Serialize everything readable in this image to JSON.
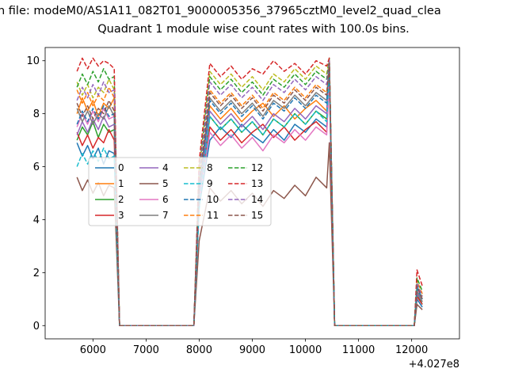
{
  "figure": {
    "title_line1": "n file: modeM0/AS1A11_082T01_9000005356_37965cztM0_level2_quad_clea",
    "title_line2": "Quadrant 1 module wise count rates with 100.0s bins.",
    "background": "#ffffff"
  },
  "chart_data": {
    "type": "line",
    "title": "Quadrant 1 module wise count rates with 100.0s bins.",
    "xlabel": "",
    "ylabel": "",
    "x_offset_label": "+4.027e8",
    "xlim": [
      5100,
      12900
    ],
    "ylim": [
      -0.5,
      10.5
    ],
    "x_ticks": [
      6000,
      7000,
      8000,
      9000,
      10000,
      11000,
      12000
    ],
    "y_ticks": [
      0,
      2,
      4,
      6,
      8,
      10
    ],
    "grid": false,
    "legend": {
      "columns": 4,
      "position": "center-left",
      "frame_color": "#cccccc"
    },
    "x": [
      5700,
      5800,
      5900,
      6000,
      6100,
      6200,
      6300,
      6400,
      6500,
      7900,
      8000,
      8200,
      8400,
      8600,
      8800,
      9000,
      9200,
      9400,
      9600,
      9800,
      10000,
      10200,
      10400,
      10450,
      10550,
      12050,
      12100,
      12200
    ],
    "series": [
      {
        "name": "0",
        "color": "#1f77b4",
        "dashed": false,
        "values": [
          6.9,
          6.4,
          6.8,
          6.3,
          6.7,
          6.1,
          6.6,
          6.5,
          0,
          0,
          4.5,
          7.0,
          7.5,
          7.1,
          7.6,
          7.2,
          6.9,
          7.4,
          7.0,
          7.6,
          7.3,
          7.8,
          7.5,
          9.3,
          0,
          0,
          1.0,
          0.7
        ]
      },
      {
        "name": "1",
        "color": "#ff7f0e",
        "dashed": false,
        "values": [
          8.0,
          8.6,
          8.1,
          8.5,
          7.9,
          8.4,
          8.2,
          8.6,
          0,
          0,
          5.0,
          8.3,
          7.8,
          8.2,
          7.7,
          8.1,
          8.4,
          7.9,
          8.3,
          7.8,
          8.2,
          8.5,
          8.1,
          10.0,
          0,
          0,
          1.3,
          0.9
        ]
      },
      {
        "name": "2",
        "color": "#2ca02c",
        "dashed": false,
        "values": [
          7.0,
          7.5,
          7.2,
          7.7,
          7.1,
          7.6,
          7.3,
          7.4,
          0,
          0,
          4.8,
          7.9,
          7.4,
          7.8,
          7.3,
          7.7,
          7.2,
          7.8,
          7.5,
          8.0,
          7.6,
          8.1,
          7.8,
          9.6,
          0,
          0,
          1.2,
          0.8
        ]
      },
      {
        "name": "3",
        "color": "#d62728",
        "dashed": false,
        "values": [
          7.3,
          6.8,
          7.2,
          6.7,
          7.1,
          6.9,
          7.4,
          7.0,
          0,
          0,
          4.6,
          7.5,
          7.0,
          7.4,
          6.9,
          7.3,
          7.6,
          7.1,
          7.5,
          7.0,
          7.4,
          7.7,
          7.3,
          9.4,
          0,
          0,
          1.1,
          0.8
        ]
      },
      {
        "name": "4",
        "color": "#9467bd",
        "dashed": false,
        "values": [
          7.2,
          7.7,
          7.3,
          7.8,
          7.4,
          7.9,
          7.5,
          7.6,
          0,
          0,
          4.9,
          8.1,
          7.6,
          8.0,
          7.5,
          7.9,
          7.4,
          8.0,
          7.7,
          8.2,
          7.8,
          8.3,
          8.0,
          9.9,
          0,
          0,
          1.2,
          0.9
        ]
      },
      {
        "name": "5",
        "color": "#8c564b",
        "dashed": false,
        "values": [
          5.6,
          5.1,
          5.5,
          5.0,
          5.4,
          4.9,
          5.3,
          5.2,
          0,
          0,
          3.2,
          5.2,
          4.7,
          5.1,
          4.6,
          5.0,
          4.5,
          5.1,
          4.8,
          5.3,
          4.9,
          5.6,
          5.2,
          6.9,
          0,
          0,
          0.8,
          0.6
        ]
      },
      {
        "name": "6",
        "color": "#e377c2",
        "dashed": false,
        "values": [
          7.5,
          8.0,
          7.6,
          8.1,
          7.7,
          8.2,
          7.8,
          7.9,
          0,
          0,
          4.7,
          7.3,
          6.8,
          7.2,
          6.7,
          7.1,
          6.6,
          7.2,
          6.9,
          7.4,
          7.0,
          7.5,
          7.2,
          9.2,
          0,
          0,
          1.4,
          1.0
        ]
      },
      {
        "name": "7",
        "color": "#7f7f7f",
        "dashed": false,
        "values": [
          8.2,
          7.7,
          8.1,
          7.6,
          8.0,
          7.8,
          8.3,
          7.9,
          0,
          0,
          5.2,
          8.6,
          8.1,
          8.5,
          8.0,
          8.4,
          7.9,
          8.5,
          8.2,
          8.7,
          8.3,
          8.8,
          8.5,
          10.0,
          0,
          0,
          1.3,
          0.9
        ]
      },
      {
        "name": "8",
        "color": "#bcbd22",
        "dashed": true,
        "values": [
          9.2,
          8.7,
          9.1,
          8.6,
          9.0,
          8.8,
          9.3,
          8.9,
          0,
          0,
          5.8,
          9.6,
          9.1,
          9.5,
          9.0,
          9.4,
          8.9,
          9.5,
          9.2,
          9.7,
          9.3,
          9.8,
          9.5,
          10.1,
          0,
          0,
          1.6,
          1.1
        ]
      },
      {
        "name": "9",
        "color": "#17becf",
        "dashed": true,
        "values": [
          6.0,
          6.5,
          6.1,
          6.6,
          6.2,
          6.7,
          6.3,
          6.4,
          0,
          0,
          4.4,
          7.9,
          7.4,
          7.8,
          7.3,
          7.7,
          7.2,
          7.8,
          7.5,
          8.0,
          7.6,
          8.1,
          7.7,
          9.7,
          0,
          0,
          1.5,
          1.0
        ]
      },
      {
        "name": "10",
        "color": "#1f77b4",
        "dashed": true,
        "values": [
          7.6,
          8.1,
          7.7,
          8.2,
          7.8,
          8.3,
          7.9,
          8.0,
          0,
          0,
          5.1,
          8.5,
          8.0,
          8.4,
          7.9,
          8.3,
          7.8,
          8.4,
          8.1,
          8.6,
          8.2,
          8.7,
          8.4,
          10.0,
          0,
          0,
          1.4,
          1.0
        ]
      },
      {
        "name": "11",
        "color": "#ff7f0e",
        "dashed": true,
        "values": [
          8.9,
          8.4,
          8.8,
          8.3,
          8.7,
          8.5,
          9.0,
          8.6,
          0,
          0,
          5.5,
          8.9,
          8.4,
          8.8,
          8.3,
          8.7,
          8.2,
          8.8,
          8.5,
          9.0,
          8.6,
          9.1,
          8.8,
          10.0,
          0,
          0,
          1.7,
          1.2
        ]
      },
      {
        "name": "12",
        "color": "#2ca02c",
        "dashed": true,
        "values": [
          9.0,
          9.5,
          9.1,
          9.6,
          9.2,
          9.7,
          9.3,
          9.4,
          0,
          0,
          5.9,
          9.4,
          8.9,
          9.3,
          8.8,
          9.2,
          8.7,
          9.3,
          9.0,
          9.5,
          9.1,
          9.6,
          9.3,
          10.1,
          0,
          0,
          1.8,
          1.3
        ]
      },
      {
        "name": "13",
        "color": "#d62728",
        "dashed": true,
        "values": [
          9.6,
          10.1,
          9.7,
          10.1,
          9.8,
          10.0,
          9.9,
          9.7,
          0,
          0,
          6.2,
          9.9,
          9.4,
          9.8,
          9.3,
          9.7,
          9.5,
          10.0,
          9.6,
          9.9,
          9.5,
          10.0,
          9.8,
          10.1,
          0,
          0,
          2.1,
          1.5
        ]
      },
      {
        "name": "14",
        "color": "#9467bd",
        "dashed": true,
        "values": [
          8.5,
          9.0,
          8.6,
          9.1,
          8.7,
          9.2,
          8.8,
          8.9,
          0,
          0,
          5.7,
          9.2,
          8.7,
          9.1,
          8.6,
          9.0,
          8.5,
          9.1,
          8.8,
          9.3,
          8.9,
          9.4,
          9.1,
          10.0,
          0,
          0,
          1.6,
          1.1
        ]
      },
      {
        "name": "15",
        "color": "#8c564b",
        "dashed": true,
        "values": [
          8.4,
          7.9,
          8.3,
          7.8,
          8.2,
          8.0,
          8.5,
          8.1,
          0,
          0,
          5.4,
          8.8,
          8.3,
          8.7,
          8.2,
          8.6,
          8.1,
          8.7,
          8.4,
          8.9,
          8.5,
          9.0,
          8.7,
          9.9,
          0,
          0,
          1.5,
          1.0
        ]
      }
    ]
  }
}
